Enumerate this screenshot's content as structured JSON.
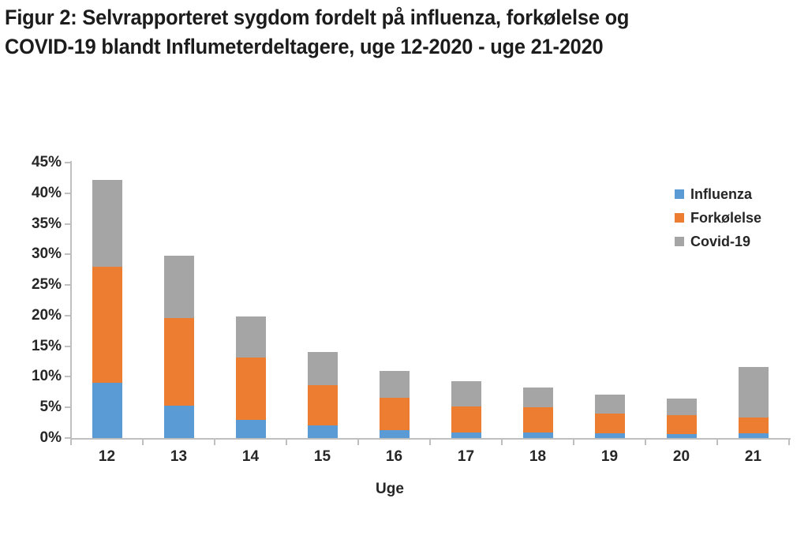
{
  "title": {
    "lines": [
      "Figur 2: Selvrapporteret sygdom fordelt på influenza, forkølelse og",
      "COVID-19 blandt Influmeterdeltagere, uge 12-2020 - uge 21-2020"
    ]
  },
  "chart_data": {
    "type": "bar",
    "stacked": true,
    "title": "Figur 2: Selvrapporteret sygdom fordelt på influenza, forkølelse og COVID-19 blandt Influmeterdeltagere, uge 12-2020 - uge 21-2020",
    "categories": [
      "12",
      "13",
      "14",
      "15",
      "16",
      "17",
      "18",
      "19",
      "20",
      "21"
    ],
    "series": [
      {
        "name": "Influenza",
        "color": "#5B9BD5",
        "values": [
          9.0,
          5.3,
          3.0,
          2.0,
          1.3,
          0.9,
          0.9,
          0.8,
          0.7,
          0.8
        ]
      },
      {
        "name": "Forkølelse",
        "color": "#ED7D31",
        "values": [
          19.0,
          14.3,
          10.1,
          6.7,
          5.3,
          4.3,
          4.1,
          3.2,
          3.0,
          2.6
        ]
      },
      {
        "name": "Covid-19",
        "color": "#A5A5A5",
        "values": [
          14.2,
          10.2,
          6.7,
          5.4,
          4.3,
          4.1,
          3.3,
          3.1,
          2.7,
          8.2
        ]
      }
    ],
    "totals": [
      42.2,
      29.8,
      19.8,
      14.1,
      10.9,
      9.3,
      8.3,
      7.1,
      6.4,
      11.6
    ],
    "xlabel": "Uge",
    "ylabel": "",
    "ylim": [
      0,
      45
    ],
    "ytick_step": 5,
    "ytick_labels": [
      "0%",
      "5%",
      "10%",
      "15%",
      "20%",
      "25%",
      "30%",
      "35%",
      "40%",
      "45%"
    ],
    "legend_position": "upper-right",
    "grid": false,
    "colors": {
      "axis": "#BFBFBF",
      "label_text": "#262626",
      "title_text": "#1C1C1C"
    }
  }
}
